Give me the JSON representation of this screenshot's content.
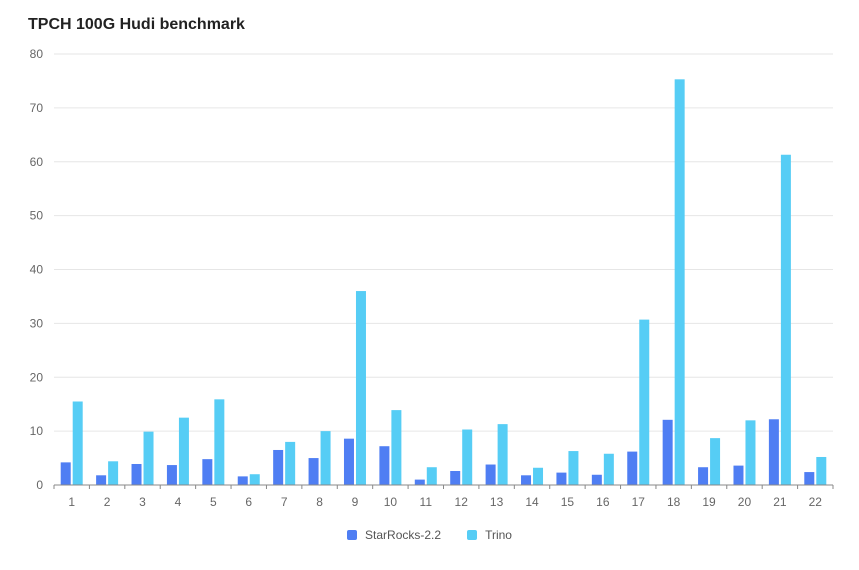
{
  "chart_data": {
    "type": "bar",
    "title": "TPCH 100G Hudi benchmark",
    "xlabel": "",
    "ylabel": "",
    "ylim": [
      0,
      80
    ],
    "yticks": [
      0,
      10,
      20,
      30,
      40,
      50,
      60,
      70,
      80
    ],
    "grid": true,
    "legend_position": "bottom",
    "categories": [
      "1",
      "2",
      "3",
      "4",
      "5",
      "6",
      "7",
      "8",
      "9",
      "10",
      "11",
      "12",
      "13",
      "14",
      "15",
      "16",
      "17",
      "18",
      "19",
      "20",
      "21",
      "22"
    ],
    "series": [
      {
        "name": "StarRocks-2.2",
        "color": "#4f7ef3",
        "values": [
          4.2,
          1.8,
          3.9,
          3.7,
          4.8,
          1.6,
          6.5,
          5.0,
          8.6,
          7.2,
          1.0,
          2.6,
          3.8,
          1.8,
          2.3,
          1.9,
          6.2,
          12.1,
          3.3,
          3.6,
          12.2,
          2.4
        ]
      },
      {
        "name": "Trino",
        "color": "#56cdf5",
        "values": [
          15.5,
          4.4,
          9.9,
          12.5,
          15.9,
          2.0,
          8.0,
          10.0,
          36.0,
          13.9,
          3.3,
          10.3,
          11.3,
          3.2,
          6.3,
          5.8,
          30.7,
          75.3,
          8.7,
          12.0,
          61.3,
          5.2
        ]
      }
    ]
  }
}
